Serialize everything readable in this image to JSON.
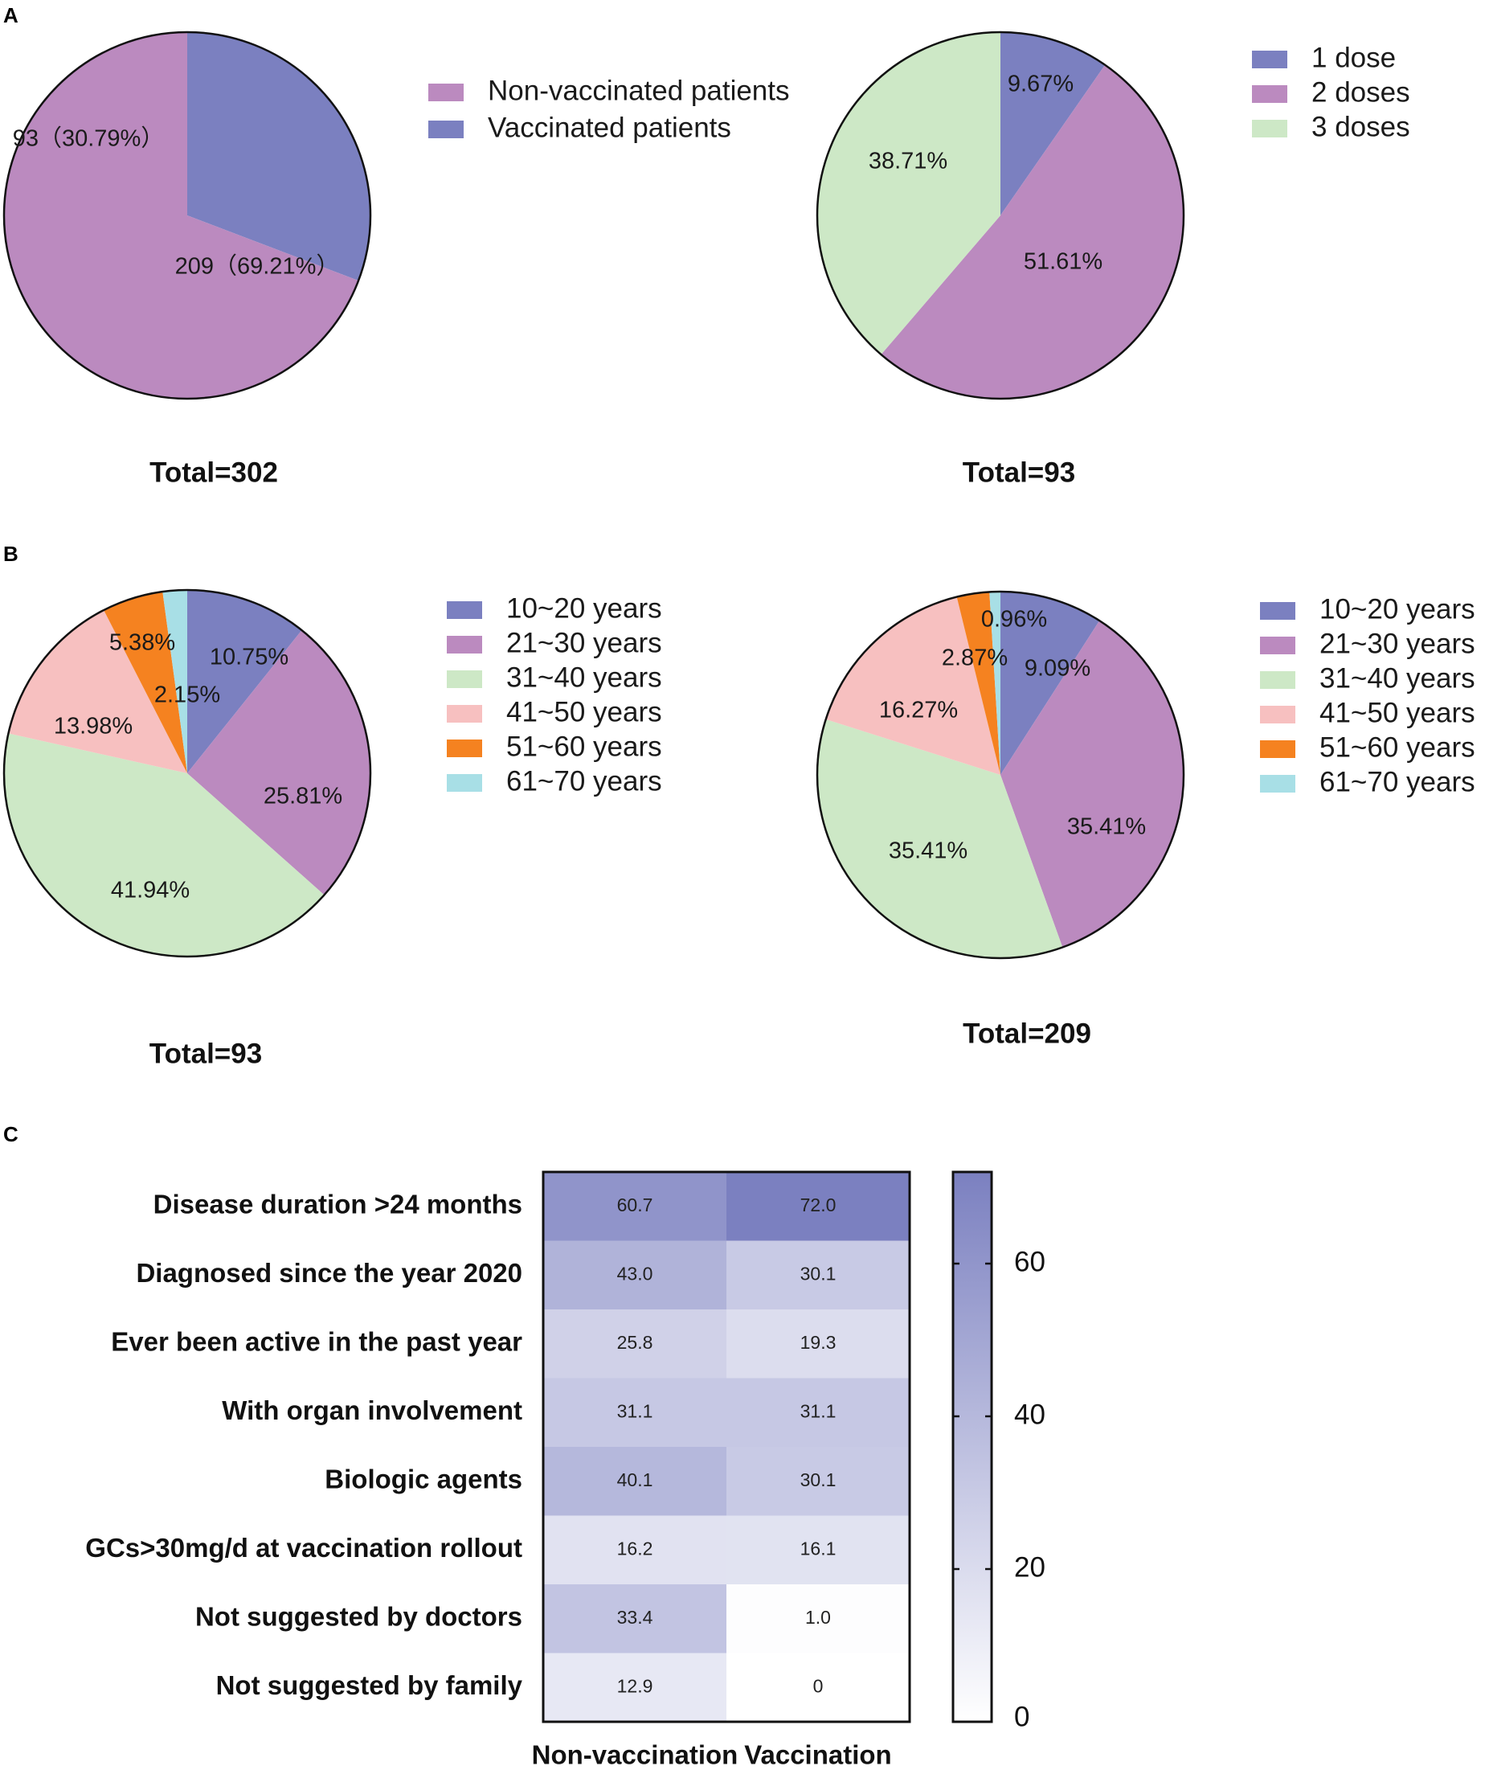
{
  "panels": {
    "a": "A",
    "b": "B",
    "c": "C"
  },
  "colors": {
    "purple": "#bb8abf",
    "blue": "#7b80c0",
    "green": "#cde8c6",
    "pink": "#f7c0c0",
    "orange": "#f58220",
    "cyan": "#a8dfe6",
    "heat_high": "#7b80c0",
    "heat_low": "#ffffff"
  },
  "chart_data": [
    {
      "id": "a1",
      "type": "pie",
      "title": "Total=302",
      "legend_position": "right",
      "slices": [
        {
          "label": "Vaccinated patients",
          "value": 93,
          "percent": 30.79,
          "display": "93（30.79%）",
          "color": "blue"
        },
        {
          "label": "Non-vaccinated patients",
          "value": 209,
          "percent": 69.21,
          "display": "209（69.21%）",
          "color": "purple"
        }
      ],
      "legend": [
        {
          "label": "Non-vaccinated patients",
          "color": "purple"
        },
        {
          "label": "Vaccinated patients",
          "color": "blue"
        }
      ]
    },
    {
      "id": "a2",
      "type": "pie",
      "title": "Total=93",
      "legend_position": "top-right",
      "slices": [
        {
          "label": "1 dose",
          "percent": 9.67,
          "display": "9.67%",
          "color": "blue"
        },
        {
          "label": "2 doses",
          "percent": 51.61,
          "display": "51.61%",
          "color": "purple"
        },
        {
          "label": "3 doses",
          "percent": 38.71,
          "display": "38.71%",
          "color": "green"
        }
      ],
      "legend": [
        {
          "label": "1 dose",
          "color": "blue"
        },
        {
          "label": "2 doses",
          "color": "purple"
        },
        {
          "label": "3 doses",
          "color": "green"
        }
      ]
    },
    {
      "id": "b1",
      "type": "pie",
      "title": "Total=93",
      "legend_position": "right",
      "slices": [
        {
          "label": "10~20 years",
          "percent": 10.75,
          "display": "10.75%",
          "color": "blue"
        },
        {
          "label": "21~30 years",
          "percent": 25.81,
          "display": "25.81%",
          "color": "purple"
        },
        {
          "label": "31~40 years",
          "percent": 41.94,
          "display": "41.94%",
          "color": "green"
        },
        {
          "label": "41~50 years",
          "percent": 13.98,
          "display": "13.98%",
          "color": "pink"
        },
        {
          "label": "51~60 years",
          "percent": 5.38,
          "display": "5.38%",
          "color": "orange"
        },
        {
          "label": "61~70 years",
          "percent": 2.15,
          "display": "2.15%",
          "color": "cyan"
        }
      ],
      "legend": [
        {
          "label": "10~20 years",
          "color": "blue"
        },
        {
          "label": "21~30 years",
          "color": "purple"
        },
        {
          "label": "31~40 years",
          "color": "green"
        },
        {
          "label": "41~50 years",
          "color": "pink"
        },
        {
          "label": "51~60 years",
          "color": "orange"
        },
        {
          "label": "61~70 years",
          "color": "cyan"
        }
      ]
    },
    {
      "id": "b2",
      "type": "pie",
      "title": "Total=209",
      "legend_position": "right",
      "slices": [
        {
          "label": "10~20 years",
          "percent": 9.09,
          "display": "9.09%",
          "color": "blue"
        },
        {
          "label": "21~30 years",
          "percent": 35.41,
          "display": "35.41%",
          "color": "purple"
        },
        {
          "label": "31~40 years",
          "percent": 35.41,
          "display": "35.41%",
          "color": "green"
        },
        {
          "label": "41~50 years",
          "percent": 16.27,
          "display": "16.27%",
          "color": "pink"
        },
        {
          "label": "51~60 years",
          "percent": 2.87,
          "display": "2.87%",
          "color": "orange"
        },
        {
          "label": "61~70 years",
          "percent": 0.96,
          "display": "0.96%",
          "color": "cyan"
        }
      ],
      "legend": [
        {
          "label": "10~20 years",
          "color": "blue"
        },
        {
          "label": "21~30 years",
          "color": "purple"
        },
        {
          "label": "31~40 years",
          "color": "green"
        },
        {
          "label": "41~50 years",
          "color": "pink"
        },
        {
          "label": "51~60 years",
          "color": "orange"
        },
        {
          "label": "61~70 years",
          "color": "cyan"
        }
      ]
    },
    {
      "id": "c",
      "type": "heatmap",
      "columns": [
        "Non-vaccination",
        "Vaccination"
      ],
      "rows": [
        "Disease duration >24 months",
        "Diagnosed since the year 2020",
        "Ever been active in the past year",
        "With organ involvement",
        "Biologic agents",
        "GCs>30mg/d at vaccination rollout",
        "Not suggested by doctors",
        "Not suggested by family"
      ],
      "values": [
        [
          60.7,
          72.0
        ],
        [
          43.0,
          30.1
        ],
        [
          25.8,
          19.3
        ],
        [
          31.1,
          31.1
        ],
        [
          40.1,
          30.1
        ],
        [
          16.2,
          16.1
        ],
        [
          33.4,
          1.0
        ],
        [
          12.9,
          0
        ]
      ],
      "display": [
        [
          "60.7",
          "72.0"
        ],
        [
          "43.0",
          "30.1"
        ],
        [
          "25.8",
          "19.3"
        ],
        [
          "31.1",
          "31.1"
        ],
        [
          "40.1",
          "30.1"
        ],
        [
          "16.2",
          "16.1"
        ],
        [
          "33.4",
          "1.0"
        ],
        [
          "12.9",
          "0"
        ]
      ],
      "color_range": [
        0,
        72
      ],
      "colorbar_ticks": [
        0,
        20,
        40,
        60
      ]
    }
  ]
}
